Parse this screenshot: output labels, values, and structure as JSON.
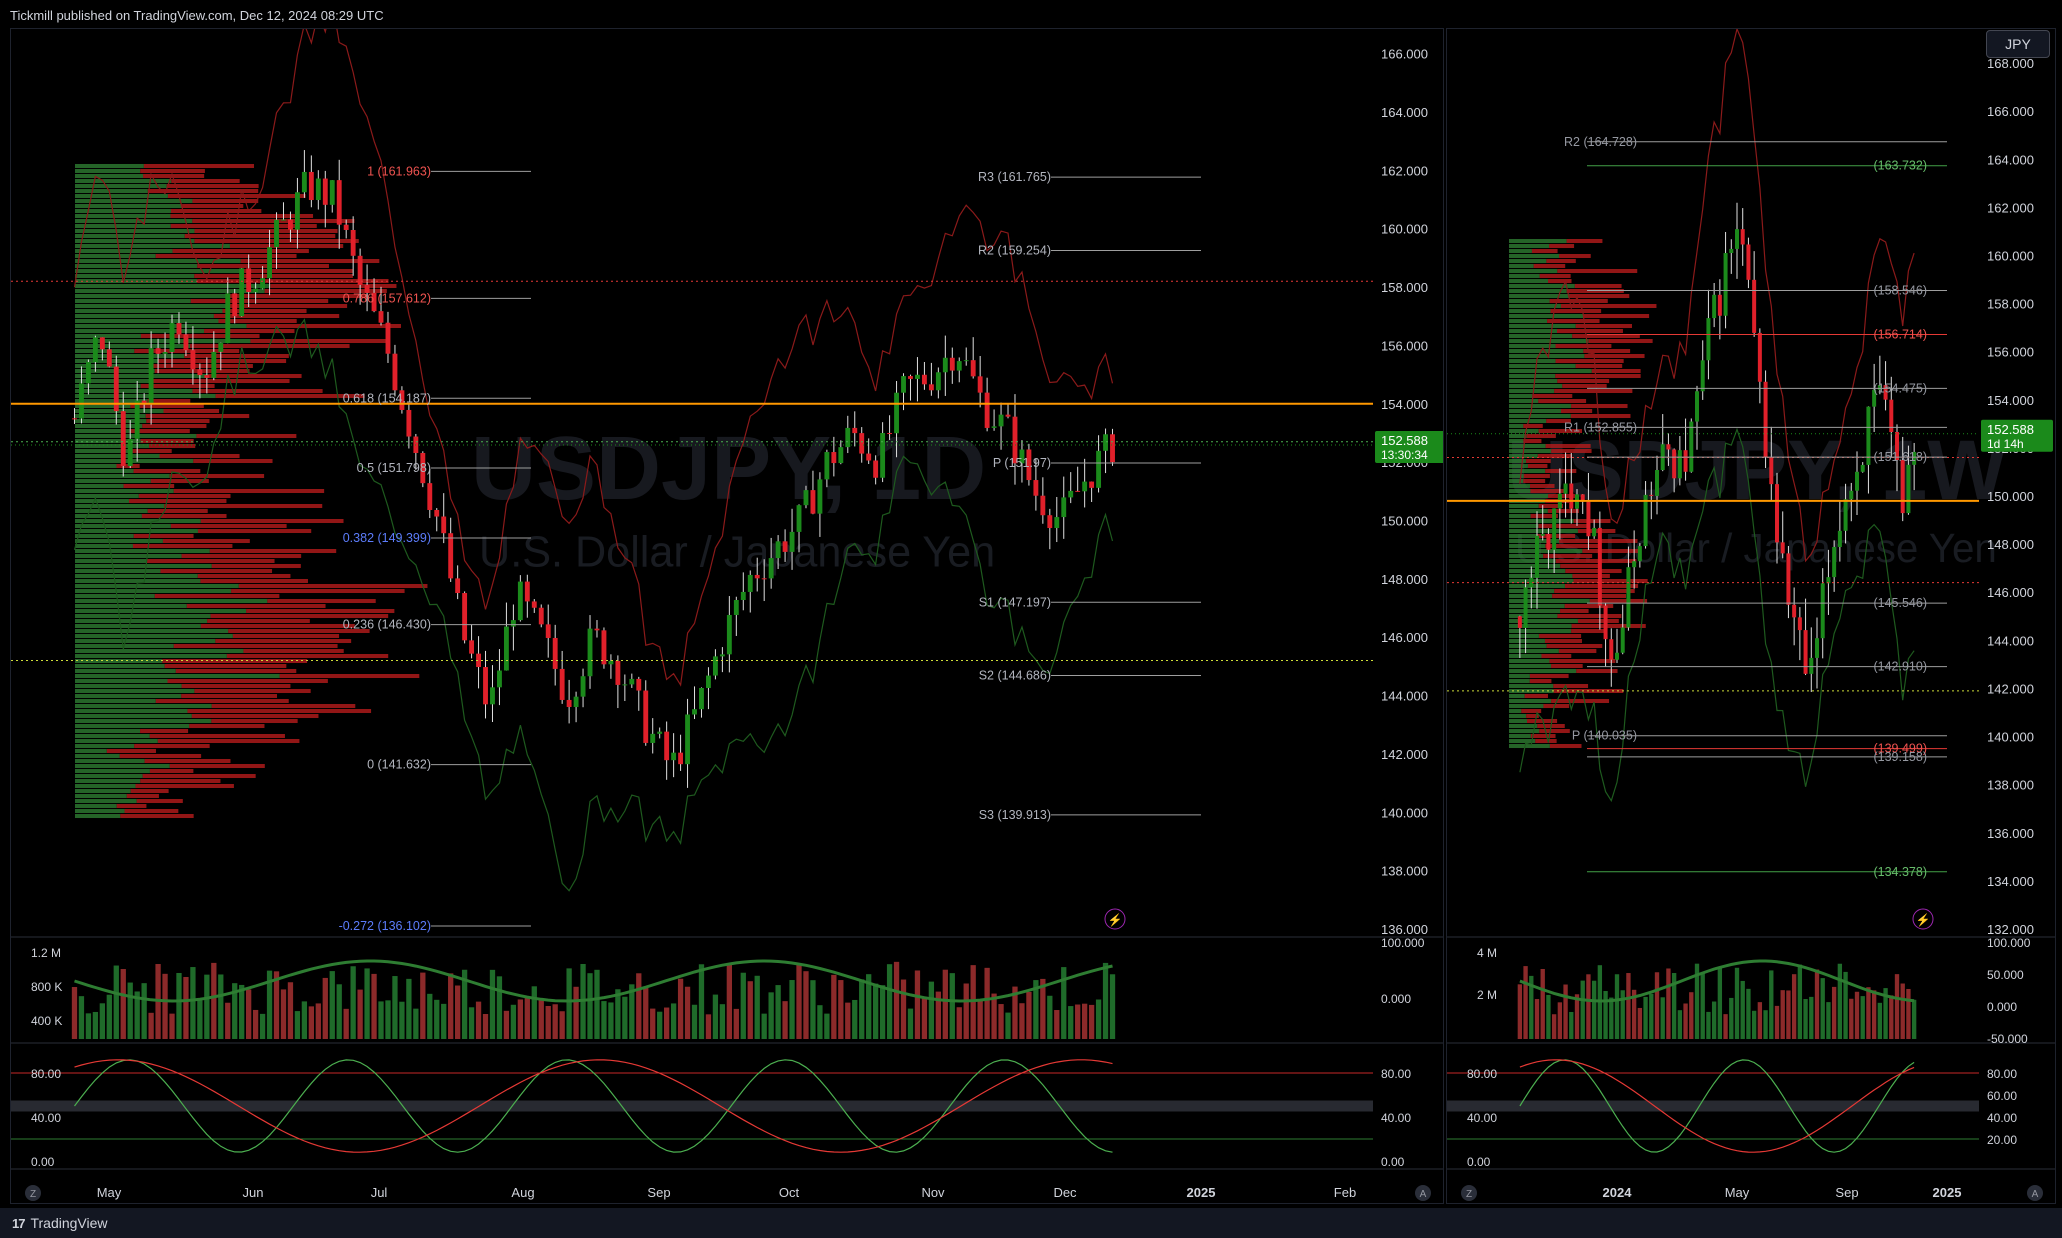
{
  "header": {
    "published": "Tickmill published on TradingView.com, Dec 12, 2024 08:29 UTC"
  },
  "footer": {
    "brand": "TradingView"
  },
  "symbol_button": "JPY",
  "colors": {
    "up": "#089981",
    "down": "#f23645",
    "green": "#2e7d32",
    "red": "#c62828",
    "orange": "#ff9800",
    "grid": "#1e222d"
  },
  "left_chart": {
    "watermark_symbol": "USDJPY, 1D",
    "watermark_name": "U.S. Dollar / Japanese Yen",
    "price_axis": [
      "166.000",
      "164.000",
      "162.000",
      "160.000",
      "158.000",
      "156.000",
      "154.000",
      "152.000",
      "150.000",
      "148.000",
      "146.000",
      "144.000",
      "142.000",
      "140.000",
      "138.000",
      "136.000"
    ],
    "time_axis": [
      "May",
      "Jun",
      "Jul",
      "Aug",
      "Sep",
      "Oct",
      "Nov",
      "Dec",
      "2025",
      "Feb"
    ],
    "last_price": "152.588",
    "countdown": "13:30:34",
    "fib_levels": [
      {
        "label": "1 (161.963)",
        "price": 161.963
      },
      {
        "label": "0.786 (157.612)",
        "price": 157.612
      },
      {
        "label": "0.618 (154.187)",
        "price": 154.187
      },
      {
        "label": "0.5 (151.798)",
        "price": 151.798
      },
      {
        "label": "0.382 (149.399)",
        "price": 149.399
      },
      {
        "label": "0.236 (146.430)",
        "price": 146.43
      },
      {
        "label": "0 (141.632)",
        "price": 141.632
      },
      {
        "label": "-0.272 (136.102)",
        "price": 136.102
      }
    ],
    "pivots": [
      {
        "label": "R3 (161.765)",
        "price": 161.765
      },
      {
        "label": "R2 (159.254)",
        "price": 159.254
      },
      {
        "label": "P (151.97)",
        "price": 151.97
      },
      {
        "label": "S1 (147.197)",
        "price": 147.197
      },
      {
        "label": "S2 (144.686)",
        "price": 144.686
      },
      {
        "label": "S3 (139.913)",
        "price": 139.913
      }
    ],
    "volume_axis": [
      "1.2 M",
      "800 K",
      "400 K"
    ],
    "osc_axis": [
      "100.000",
      "0.000"
    ],
    "stoch_axis": [
      "80.00",
      "40.00",
      "0.00"
    ],
    "stoch_axis_right": [
      "80.00",
      "40.00",
      "0.00"
    ]
  },
  "right_chart": {
    "watermark_symbol": "USDJPY, 1W",
    "watermark_name": "U.S. Dollar / Japanese Yen",
    "price_axis": [
      "168.000",
      "166.000",
      "164.000",
      "162.000",
      "160.000",
      "158.000",
      "156.000",
      "154.000",
      "152.000",
      "150.000",
      "148.000",
      "146.000",
      "144.000",
      "142.000",
      "140.000",
      "138.000",
      "136.000",
      "134.000",
      "132.000"
    ],
    "time_axis": [
      "2024",
      "May",
      "Sep",
      "2025"
    ],
    "last_price": "152.588",
    "countdown": "1d 14h",
    "levels": [
      {
        "label": "R2 (164.728)",
        "price": 164.728
      },
      {
        "label": "(163.732)",
        "price": 163.732
      },
      {
        "label": "(158.546)",
        "price": 158.546
      },
      {
        "label": "(156.714)",
        "price": 156.714
      },
      {
        "label": "(154.475)",
        "price": 154.475
      },
      {
        "label": "R1 (152.855)",
        "price": 152.855
      },
      {
        "label": "(151.618)",
        "price": 151.618
      },
      {
        "label": "(145.546)",
        "price": 145.546
      },
      {
        "label": "(142.910)",
        "price": 142.91
      },
      {
        "label": "P (140.035)",
        "price": 140.035
      },
      {
        "label": "(139.499)",
        "price": 139.499
      },
      {
        "label": "(139.158)",
        "price": 139.158
      },
      {
        "label": "(134.378)",
        "price": 134.378
      }
    ],
    "volume_axis": [
      "4 M",
      "2 M"
    ],
    "osc_axis": [
      "100.000",
      "50.000",
      "0.000",
      "-50.000"
    ],
    "stoch_axis_left": [
      "80.00",
      "40.00",
      "0.00"
    ],
    "stoch_axis_right": [
      "80.00",
      "60.00",
      "40.00",
      "20.00"
    ]
  },
  "chart_data": [
    {
      "type": "candlestick",
      "title": "USDJPY, 1D",
      "ylim": [
        136,
        166.5
      ],
      "x": [
        "May",
        "Jun",
        "Jul",
        "Aug",
        "Sep",
        "Oct",
        "Nov",
        "Dec",
        "2025",
        "Feb"
      ],
      "close_path": [
        153.5,
        156.5,
        152.0,
        155.5,
        157.0,
        155.0,
        157.5,
        158.5,
        160.0,
        161.5,
        161.0,
        158.0,
        156.0,
        153.0,
        150.0,
        146.0,
        143.5,
        147.5,
        146.0,
        144.0,
        146.0,
        145.0,
        143.0,
        141.5,
        143.5,
        146.0,
        148.0,
        149.0,
        150.0,
        152.0,
        153.0,
        152.0,
        154.5,
        155.0,
        156.0,
        154.0,
        153.0,
        151.0,
        150.0,
        151.5,
        152.6
      ]
    },
    {
      "type": "candlestick",
      "title": "USDJPY, 1W",
      "ylim": [
        132,
        169
      ],
      "x": [
        "2024",
        "May",
        "Sep",
        "2025"
      ],
      "close_path": [
        145,
        147,
        148,
        149,
        150,
        151,
        149,
        146,
        143,
        145,
        148,
        150,
        151,
        152,
        151,
        153,
        156,
        158,
        160,
        161,
        157,
        153,
        149,
        146,
        144,
        142,
        145,
        148,
        150,
        151,
        153,
        154,
        152,
        150,
        152.6
      ]
    }
  ]
}
